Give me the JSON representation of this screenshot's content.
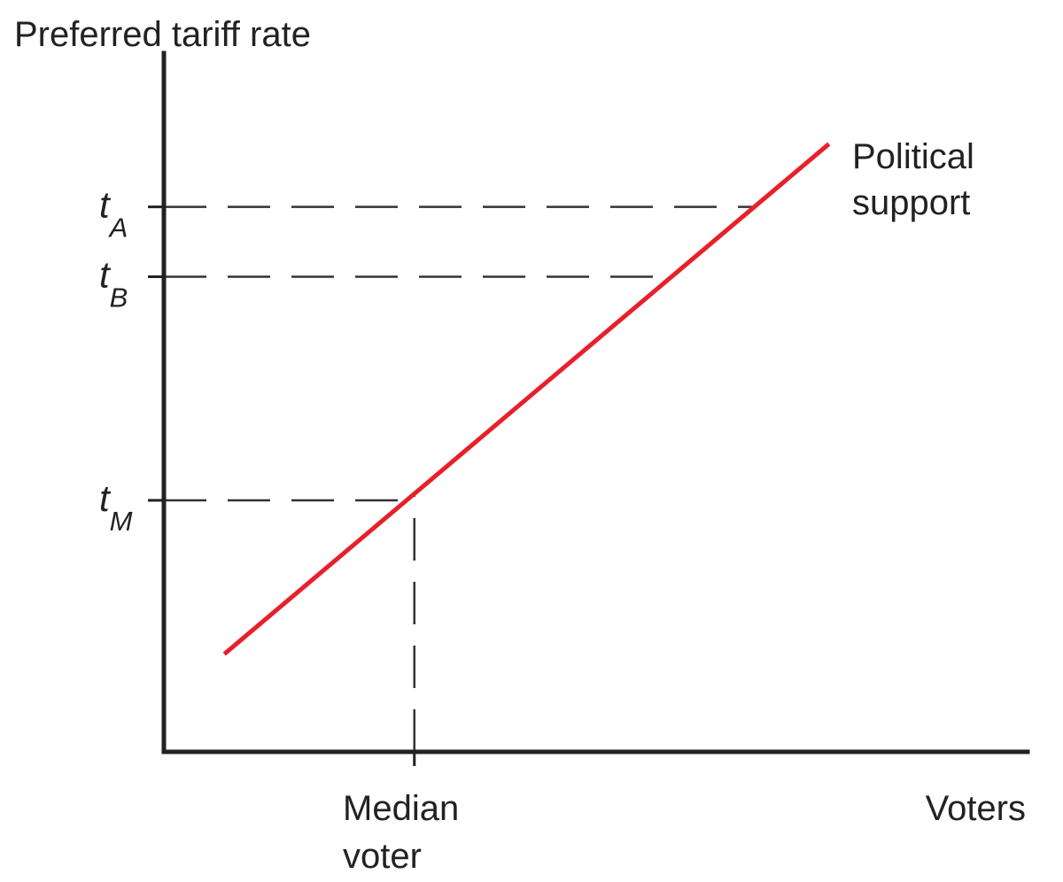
{
  "chart_data": {
    "type": "line",
    "title": "",
    "ylabel": "Preferred tariff rate",
    "xlabel": "Voters",
    "x_range": [
      0,
      100
    ],
    "y_range": [
      0,
      100
    ],
    "grid": false,
    "legend": "none",
    "series": [
      {
        "name_lines": [
          "Political",
          "support"
        ],
        "color": "#e8202a",
        "x": [
          7,
          77
        ],
        "y": [
          14,
          87
        ]
      }
    ],
    "y_ticks": [
      {
        "base": "t",
        "sub": "A",
        "value": 78
      },
      {
        "base": "t",
        "sub": "B",
        "value": 68
      },
      {
        "base": "t",
        "sub": "M",
        "value": 36
      }
    ],
    "x_ticks": [
      {
        "label_lines": [
          "Median",
          "voter"
        ],
        "value": 29
      }
    ],
    "axis_color": "#222222",
    "guide_color": "#333333"
  }
}
